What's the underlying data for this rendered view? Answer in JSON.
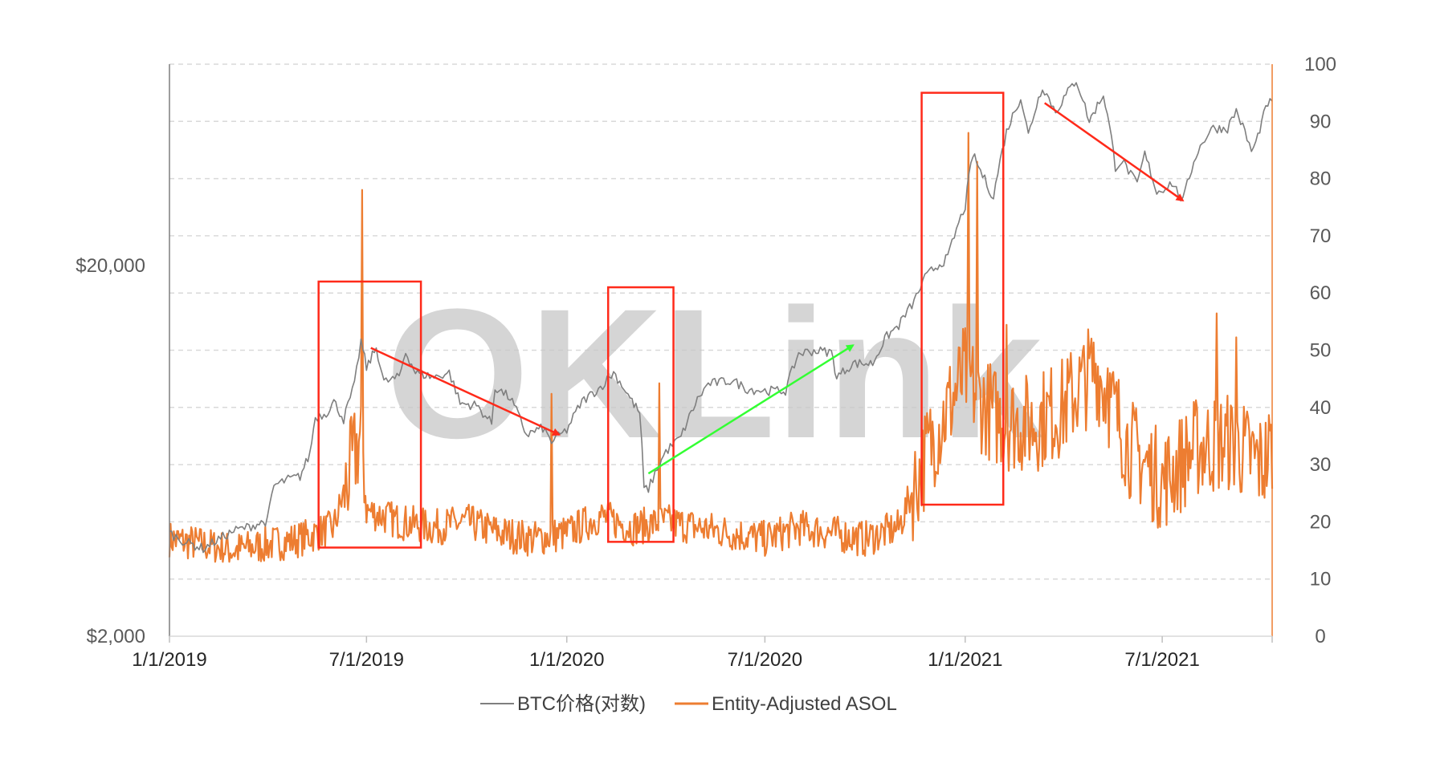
{
  "watermark": "OKLink",
  "chart_data": {
    "type": "line",
    "x_start": "1/1/2019",
    "x_end": "10/10/2021",
    "x_tick_labels": [
      "1/1/2019",
      "7/1/2019",
      "1/1/2020",
      "7/1/2020",
      "1/1/2021",
      "7/1/2021"
    ],
    "x_ticks": [
      "2019-01-01",
      "2019-07-01",
      "2020-01-01",
      "2020-07-01",
      "2021-01-01",
      "2021-07-01"
    ],
    "y_left": {
      "scale": "log",
      "range": [
        2000,
        70000
      ],
      "tick_labels": [
        "$2,000",
        "$20,000"
      ],
      "ticks": [
        2000,
        20000
      ]
    },
    "y_right": {
      "scale": "linear",
      "range": [
        0,
        100
      ],
      "ticks": [
        0,
        10,
        20,
        30,
        40,
        50,
        60,
        70,
        80,
        90,
        100
      ]
    },
    "grid": "horizontal-dashed",
    "legend_position": "bottom",
    "series": [
      {
        "name": "BTC价格(对数)",
        "axis": "left",
        "color": "#7f7f7f",
        "points": [
          [
            "2019-01-01",
            3800
          ],
          [
            "2019-01-15",
            3600
          ],
          [
            "2019-02-01",
            3450
          ],
          [
            "2019-02-15",
            3650
          ],
          [
            "2019-03-01",
            3850
          ],
          [
            "2019-03-15",
            3950
          ],
          [
            "2019-04-01",
            4100
          ],
          [
            "2019-04-07",
            5100
          ],
          [
            "2019-04-20",
            5300
          ],
          [
            "2019-05-01",
            5400
          ],
          [
            "2019-05-10",
            6200
          ],
          [
            "2019-05-15",
            7800
          ],
          [
            "2019-05-25",
            8000
          ],
          [
            "2019-06-01",
            8600
          ],
          [
            "2019-06-10",
            7700
          ],
          [
            "2019-06-20",
            9500
          ],
          [
            "2019-06-26",
            12500
          ],
          [
            "2019-07-01",
            10600
          ],
          [
            "2019-07-10",
            12000
          ],
          [
            "2019-07-17",
            9700
          ],
          [
            "2019-07-31",
            10000
          ],
          [
            "2019-08-06",
            11700
          ],
          [
            "2019-08-15",
            10300
          ],
          [
            "2019-09-01",
            10000
          ],
          [
            "2019-09-15",
            10300
          ],
          [
            "2019-09-25",
            8500
          ],
          [
            "2019-10-10",
            8400
          ],
          [
            "2019-10-24",
            7500
          ],
          [
            "2019-10-27",
            9400
          ],
          [
            "2019-11-10",
            8800
          ],
          [
            "2019-11-25",
            7000
          ],
          [
            "2019-12-10",
            7300
          ],
          [
            "2019-12-18",
            6700
          ],
          [
            "2020-01-01",
            7200
          ],
          [
            "2020-01-15",
            8600
          ],
          [
            "2020-02-01",
            9400
          ],
          [
            "2020-02-13",
            10300
          ],
          [
            "2020-03-01",
            8600
          ],
          [
            "2020-03-08",
            8000
          ],
          [
            "2020-03-12",
            5000
          ],
          [
            "2020-03-16",
            5000
          ],
          [
            "2020-04-01",
            6300
          ],
          [
            "2020-04-15",
            6900
          ],
          [
            "2020-04-30",
            8700
          ],
          [
            "2020-05-10",
            9600
          ],
          [
            "2020-06-01",
            9800
          ],
          [
            "2020-06-15",
            9300
          ],
          [
            "2020-07-01",
            9200
          ],
          [
            "2020-07-20",
            9200
          ],
          [
            "2020-08-01",
            11600
          ],
          [
            "2020-08-15",
            11800
          ],
          [
            "2020-08-31",
            11700
          ],
          [
            "2020-09-05",
            10000
          ],
          [
            "2020-09-20",
            10900
          ],
          [
            "2020-10-08",
            10900
          ],
          [
            "2020-10-21",
            12900
          ],
          [
            "2020-11-01",
            13800
          ],
          [
            "2020-11-15",
            16000
          ],
          [
            "2020-11-25",
            18500
          ],
          [
            "2020-12-01",
            19400
          ],
          [
            "2020-12-16",
            21000
          ],
          [
            "2020-12-28",
            27000
          ],
          [
            "2021-01-01",
            29000
          ],
          [
            "2021-01-08",
            40000
          ],
          [
            "2021-01-15",
            36000
          ],
          [
            "2021-01-27",
            30500
          ],
          [
            "2021-02-08",
            46000
          ],
          [
            "2021-02-21",
            57000
          ],
          [
            "2021-02-28",
            45000
          ],
          [
            "2021-03-13",
            61000
          ],
          [
            "2021-03-25",
            52000
          ],
          [
            "2021-04-13",
            63500
          ],
          [
            "2021-04-25",
            49000
          ],
          [
            "2021-05-08",
            58000
          ],
          [
            "2021-05-19",
            37000
          ],
          [
            "2021-05-25",
            38500
          ],
          [
            "2021-06-08",
            33000
          ],
          [
            "2021-06-15",
            40000
          ],
          [
            "2021-06-26",
            31500
          ],
          [
            "2021-07-10",
            33500
          ],
          [
            "2021-07-20",
            29800
          ],
          [
            "2021-08-01",
            39800
          ],
          [
            "2021-08-15",
            47000
          ],
          [
            "2021-08-30",
            47000
          ],
          [
            "2021-09-07",
            52500
          ],
          [
            "2021-09-21",
            40700
          ],
          [
            "2021-09-25",
            42800
          ],
          [
            "2021-10-06",
            55000
          ],
          [
            "2021-10-10",
            55000
          ]
        ]
      },
      {
        "name": "Entity-Adjusted ASOL",
        "axis": "right",
        "color": "#ed7d31",
        "points": [
          [
            "2019-01-01",
            17
          ],
          [
            "2019-02-01",
            16
          ],
          [
            "2019-03-01",
            15
          ],
          [
            "2019-04-01",
            16
          ],
          [
            "2019-05-01",
            17
          ],
          [
            "2019-06-01",
            19
          ],
          [
            "2019-06-27",
            36
          ],
          [
            "2019-07-01",
            22
          ],
          [
            "2019-08-01",
            20
          ],
          [
            "2019-09-01",
            19
          ],
          [
            "2019-10-01",
            20
          ],
          [
            "2019-11-01",
            18
          ],
          [
            "2019-12-01",
            17
          ],
          [
            "2020-01-01",
            18
          ],
          [
            "2020-02-01",
            21
          ],
          [
            "2020-03-01",
            19
          ],
          [
            "2020-04-01",
            20
          ],
          [
            "2020-05-01",
            19
          ],
          [
            "2020-06-01",
            18
          ],
          [
            "2020-07-01",
            17
          ],
          [
            "2020-08-01",
            19
          ],
          [
            "2020-09-01",
            18
          ],
          [
            "2020-10-01",
            17
          ],
          [
            "2020-11-01",
            19
          ],
          [
            "2020-12-01",
            34
          ],
          [
            "2021-01-01",
            46
          ],
          [
            "2021-01-15",
            41
          ],
          [
            "2021-02-01",
            38
          ],
          [
            "2021-03-01",
            37
          ],
          [
            "2021-04-01",
            40
          ],
          [
            "2021-05-01",
            47
          ],
          [
            "2021-06-01",
            33
          ],
          [
            "2021-07-01",
            27
          ],
          [
            "2021-08-01",
            33
          ],
          [
            "2021-09-01",
            34
          ],
          [
            "2021-10-01",
            30
          ],
          [
            "2021-10-10",
            33
          ]
        ]
      }
    ],
    "annotations": [
      {
        "type": "box",
        "from": "2019-05-18",
        "to": "2019-08-20",
        "y_right": [
          15.5,
          62
        ]
      },
      {
        "type": "box",
        "from": "2020-02-08",
        "to": "2020-04-08",
        "y_right": [
          16.5,
          61
        ]
      },
      {
        "type": "box",
        "from": "2020-11-22",
        "to": "2021-02-05",
        "y_right": [
          23,
          95
        ]
      },
      {
        "type": "arrow",
        "color": "red",
        "from": [
          "2019-07-05",
          12000
        ],
        "to": [
          "2019-12-25",
          7000
        ]
      },
      {
        "type": "arrow",
        "color": "green",
        "from": [
          "2020-03-16",
          5500
        ],
        "to": [
          "2020-09-20",
          12200
        ]
      },
      {
        "type": "arrow",
        "color": "red",
        "from": [
          "2021-03-15",
          55000
        ],
        "to": [
          "2021-07-20",
          30000
        ]
      }
    ]
  }
}
